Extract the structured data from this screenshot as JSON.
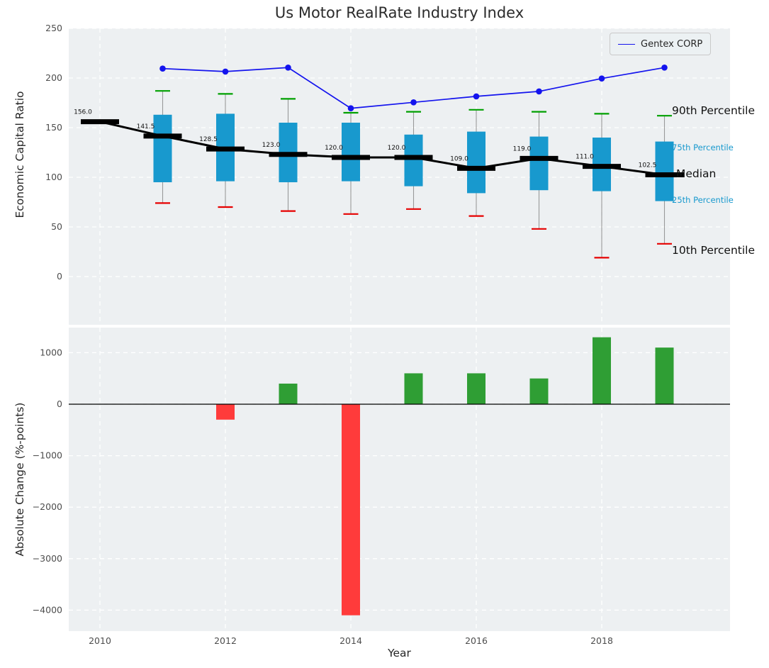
{
  "title": "Us Motor RealRate Industry Index",
  "legend": {
    "gentex_label": "Gentex CORP"
  },
  "annotations": {
    "p90": "90th Percentile",
    "p75": "75th Percentile",
    "median": "Median",
    "p25": "25th Percentile",
    "p10": "10th Percentile"
  },
  "colors": {
    "panel_bg": "#edf0f2",
    "grid": "#ffffff",
    "box": "#1899ce",
    "cap_green": "#00a000",
    "cap_red": "#e60000",
    "bar_green": "#2f9e34",
    "bar_red": "#ff3b3b",
    "gentex_blue": "#1414ee",
    "median_black": "#000000",
    "whisker_gray": "#999999",
    "tick_text": "#4d4d4d",
    "annotation_teal": "#1899ce",
    "text_dark": "#262626"
  },
  "chart_data": [
    {
      "type": "box-line",
      "title": "Us Motor RealRate Industry Index",
      "ylabel": "Economic Capital Ratio",
      "ylim": [
        -50,
        250
      ],
      "yticks": [
        0,
        50,
        100,
        150,
        200,
        250
      ],
      "x": [
        2010,
        2011,
        2012,
        2013,
        2014,
        2015,
        2016,
        2017,
        2018,
        2019
      ],
      "x_ticks_shown": [
        2010,
        2012,
        2014,
        2016,
        2018
      ],
      "grid": true,
      "legend_position": "upper right",
      "series": [
        {
          "name": "Median",
          "role": "median",
          "values": [
            156,
            141.5,
            128.5,
            123,
            120,
            120,
            109,
            119,
            111,
            102.5
          ]
        },
        {
          "name": "90th Percentile",
          "role": "p90",
          "values": [
            null,
            187,
            184,
            179,
            165,
            166,
            168,
            166,
            164,
            162
          ]
        },
        {
          "name": "75th Percentile",
          "role": "p75",
          "values": [
            null,
            163,
            164,
            155,
            155,
            143,
            146,
            141,
            140,
            136
          ]
        },
        {
          "name": "25th Percentile",
          "role": "p25",
          "values": [
            null,
            95,
            96,
            95,
            96,
            91,
            84,
            87,
            86,
            76
          ]
        },
        {
          "name": "10th Percentile",
          "role": "p10",
          "values": [
            null,
            74,
            70,
            66,
            63,
            68,
            61,
            48,
            19,
            33
          ]
        },
        {
          "name": "Gentex CORP",
          "role": "gentex",
          "values": [
            null,
            209.5,
            206.5,
            210.5,
            169.5,
            175.5,
            181.5,
            186.5,
            199.5,
            210.5
          ]
        }
      ],
      "median_labels": [
        "156.0",
        "141.5",
        "128.5",
        "123.0",
        "120.0",
        "120.0",
        "109.0",
        "119.0",
        "111.0",
        "102.5"
      ]
    },
    {
      "type": "bar",
      "ylabel": "Absolute Change (%-points)",
      "xlabel": "Year",
      "ylim": [
        -4400,
        1500
      ],
      "yticks": [
        1000,
        0,
        -1000,
        -2000,
        -3000,
        -4000
      ],
      "x": [
        2010,
        2011,
        2012,
        2013,
        2014,
        2015,
        2016,
        2017,
        2018,
        2019
      ],
      "x_ticks_shown": [
        2010,
        2012,
        2014,
        2016,
        2018
      ],
      "grid": true,
      "values": [
        null,
        null,
        -300,
        400,
        -4100,
        600,
        600,
        500,
        1300,
        1100
      ]
    }
  ]
}
